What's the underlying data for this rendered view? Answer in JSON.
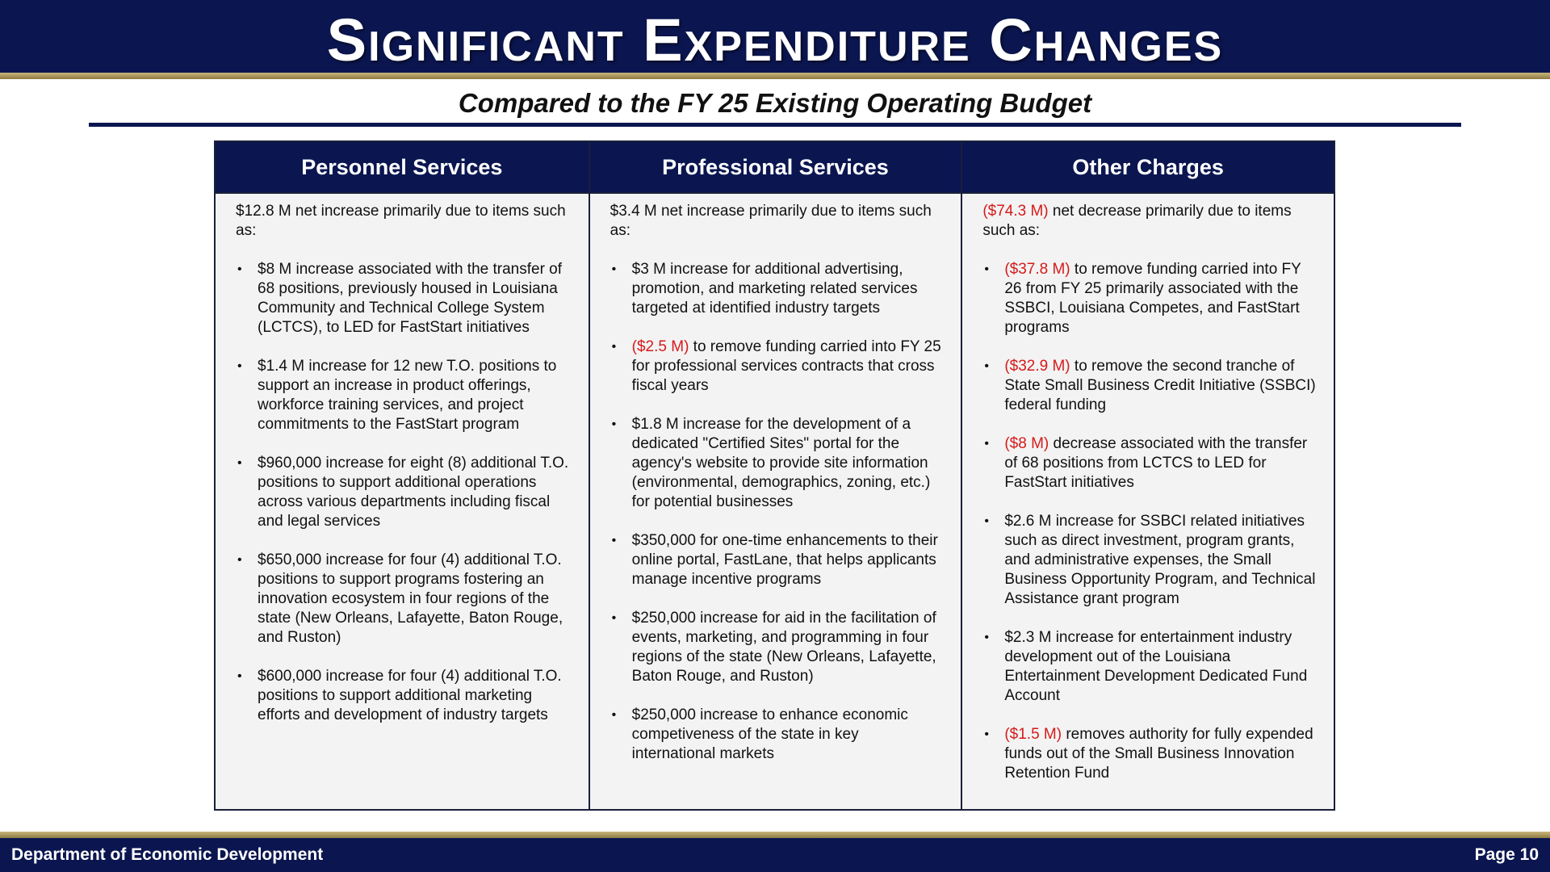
{
  "header": {
    "title": "Significant Expenditure Changes",
    "subtitle": "Compared to the FY 25 Existing Operating Budget"
  },
  "colors": {
    "navy": "#0b1650",
    "gold": "#b8a364",
    "negative": "#d61a1a"
  },
  "columns": [
    {
      "heading": "Personnel Services",
      "intro": {
        "amount": "",
        "text": "$12.8 M net increase primarily due to items such as:"
      },
      "items": [
        {
          "amount": "",
          "text": "$8 M increase associated with the transfer of 68 positions, previously housed in Louisiana Community and Technical College System (LCTCS), to LED for FastStart initiatives"
        },
        {
          "amount": "",
          "text": "$1.4 M increase for 12 new T.O. positions to support an increase in product offerings, workforce training services, and project commitments to the FastStart program"
        },
        {
          "amount": "",
          "text": "$960,000 increase for eight (8) additional T.O. positions to support additional operations across various departments including fiscal and legal services"
        },
        {
          "amount": "",
          "text": "$650,000 increase for four (4) additional T.O. positions to support programs fostering an innovation ecosystem in four regions of the state (New Orleans, Lafayette, Baton Rouge, and Ruston)"
        },
        {
          "amount": "",
          "text": "$600,000 increase for four (4) additional T.O. positions to support additional marketing efforts and development of industry targets"
        }
      ]
    },
    {
      "heading": "Professional Services",
      "intro": {
        "amount": "",
        "text": "$3.4 M net increase primarily due to items such as:"
      },
      "items": [
        {
          "amount": "",
          "text": "$3 M increase for additional advertising, promotion, and marketing related services targeted at identified industry targets"
        },
        {
          "amount": "($2.5 M)",
          "text": " to remove funding carried into FY 25 for professional services contracts that cross fiscal years"
        },
        {
          "amount": "",
          "text": "$1.8 M increase for the development of a dedicated \"Certified Sites\" portal for the agency's website to provide site information (environmental, demographics, zoning, etc.) for potential businesses"
        },
        {
          "amount": "",
          "text": "$350,000 for one-time enhancements to their online portal, FastLane, that helps applicants manage incentive programs"
        },
        {
          "amount": "",
          "text": "$250,000 increase for aid in the facilitation of events, marketing, and programming in four regions of the state (New Orleans, Lafayette, Baton Rouge, and Ruston)"
        },
        {
          "amount": "",
          "text": "$250,000 increase to enhance economic competiveness of the state in key international markets"
        }
      ]
    },
    {
      "heading": "Other Charges",
      "intro": {
        "amount": "($74.3 M)",
        "text": " net decrease primarily due to items such as:"
      },
      "items": [
        {
          "amount": "($37.8 M)",
          "text": " to remove funding carried into FY 26 from FY 25 primarily associated with the SSBCI, Louisiana Competes, and FastStart programs"
        },
        {
          "amount": "($32.9 M)",
          "text": " to remove the second tranche of State Small Business Credit Initiative (SSBCI) federal funding"
        },
        {
          "amount": "($8 M)",
          "text": " decrease associated with the transfer of 68 positions from LCTCS to LED for FastStart initiatives"
        },
        {
          "amount": "",
          "text": "$2.6 M increase for SSBCI related initiatives such as direct investment, program grants, and administrative expenses, the Small Business Opportunity Program, and Technical Assistance grant program"
        },
        {
          "amount": "",
          "text": "$2.3 M increase for entertainment industry development out of the Louisiana Entertainment Development Dedicated Fund Account"
        },
        {
          "amount": "($1.5 M)",
          "text": " removes authority for fully expended funds out of the Small Business Innovation Retention Fund"
        }
      ]
    }
  ],
  "footer": {
    "left": "Department of Economic Development",
    "right": "Page 10"
  }
}
